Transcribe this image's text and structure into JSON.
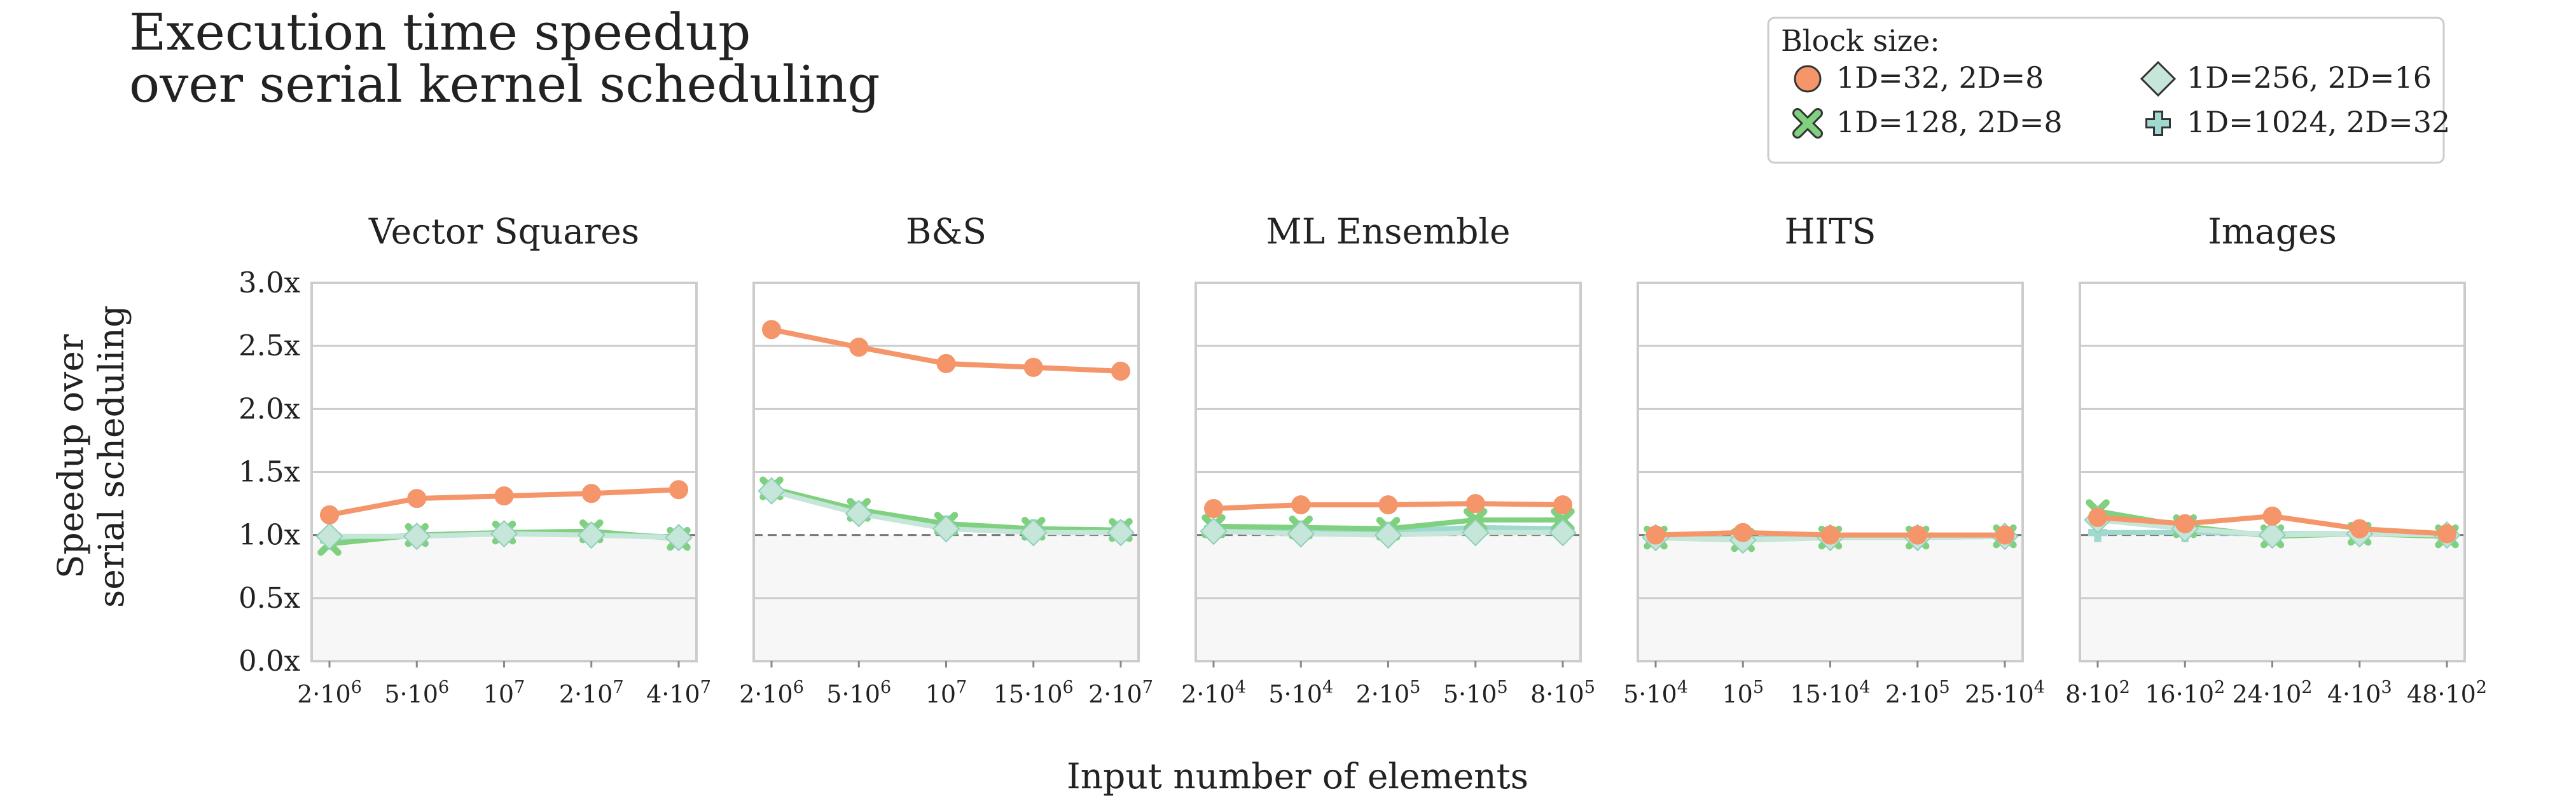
{
  "title_lines": [
    "Execution time speedup",
    "over serial kernel scheduling"
  ],
  "xlabel": "Input number of elements",
  "ylabel_lines": [
    "Speedup over",
    "serial scheduling"
  ],
  "y_ticks": [
    "0.0x",
    "0.5x",
    "1.0x",
    "1.5x",
    "2.0x",
    "2.5x",
    "3.0x"
  ],
  "legend": {
    "title": "Block size:",
    "entries": [
      "1D=32, 2D=8",
      "1D=256, 2D=16",
      "1D=128, 2D=8",
      "1D=1024, 2D=32"
    ]
  },
  "colors": {
    "s1": "#f4956a",
    "s2": "#c5e6d8",
    "s3": "#7fd07f",
    "s4": "#9fd9cf",
    "shade": "#f7f7f7",
    "grid": "#cccccc"
  },
  "chart_data": {
    "type": "line",
    "ylim": [
      0,
      3
    ],
    "reference_line": 1.0,
    "series_markers": [
      "circle",
      "diamond",
      "x",
      "plus"
    ],
    "panels": [
      {
        "title": "Vector Squares",
        "x_ticks": [
          [
            "2·10",
            "6"
          ],
          [
            "5·10",
            "6"
          ],
          [
            "10",
            "7"
          ],
          [
            "2·10",
            "7"
          ],
          [
            "4·10",
            "7"
          ]
        ],
        "series": [
          {
            "name": "1D=32, 2D=8",
            "values": [
              1.16,
              1.29,
              1.31,
              1.33,
              1.36
            ]
          },
          {
            "name": "1D=256, 2D=16",
            "values": [
              0.99,
              0.99,
              1.01,
              1.0,
              0.98
            ]
          },
          {
            "name": "1D=128, 2D=8",
            "values": [
              0.93,
              1.0,
              1.02,
              1.03,
              0.97
            ]
          },
          {
            "name": "1D=1024, 2D=32",
            "values": [
              0.96,
              1.0,
              1.02,
              1.02,
              0.98
            ]
          }
        ]
      },
      {
        "title": "B&S",
        "x_ticks": [
          [
            "2·10",
            "6"
          ],
          [
            "5·10",
            "6"
          ],
          [
            "10",
            "7"
          ],
          [
            "15·10",
            "6"
          ],
          [
            "2·10",
            "7"
          ]
        ],
        "series": [
          {
            "name": "1D=32, 2D=8",
            "values": [
              2.63,
              2.49,
              2.36,
              2.33,
              2.3
            ]
          },
          {
            "name": "1D=256, 2D=16",
            "values": [
              1.35,
              1.17,
              1.05,
              1.02,
              1.02
            ]
          },
          {
            "name": "1D=128, 2D=8",
            "values": [
              1.37,
              1.2,
              1.09,
              1.05,
              1.04
            ]
          },
          {
            "name": "1D=1024, 2D=32",
            "values": [
              1.36,
              1.19,
              1.08,
              1.05,
              1.04
            ]
          }
        ]
      },
      {
        "title": "ML Ensemble",
        "x_ticks": [
          [
            "2·10",
            "4"
          ],
          [
            "5·10",
            "4"
          ],
          [
            "2·10",
            "5"
          ],
          [
            "5·10",
            "5"
          ],
          [
            "8·10",
            "5"
          ]
        ],
        "series": [
          {
            "name": "1D=32, 2D=8",
            "values": [
              1.21,
              1.24,
              1.24,
              1.25,
              1.24
            ]
          },
          {
            "name": "1D=256, 2D=16",
            "values": [
              1.03,
              1.01,
              1.0,
              1.02,
              1.02
            ]
          },
          {
            "name": "1D=128, 2D=8",
            "values": [
              1.07,
              1.06,
              1.05,
              1.12,
              1.12
            ]
          },
          {
            "name": "1D=1024, 2D=32",
            "values": [
              1.05,
              1.04,
              1.03,
              1.06,
              1.05
            ]
          }
        ]
      },
      {
        "title": "HITS",
        "x_ticks": [
          [
            "5·10",
            "4"
          ],
          [
            "10",
            "5"
          ],
          [
            "15·10",
            "4"
          ],
          [
            "2·10",
            "5"
          ],
          [
            "25·10",
            "4"
          ]
        ],
        "series": [
          {
            "name": "1D=32, 2D=8",
            "values": [
              1.0,
              1.02,
              1.0,
              1.0,
              1.0
            ]
          },
          {
            "name": "1D=256, 2D=16",
            "values": [
              0.98,
              0.96,
              0.98,
              0.98,
              0.99
            ]
          },
          {
            "name": "1D=128, 2D=8",
            "values": [
              0.98,
              0.96,
              0.98,
              0.98,
              0.99
            ]
          },
          {
            "name": "1D=1024, 2D=32",
            "values": [
              0.98,
              0.97,
              0.99,
              0.99,
              0.99
            ]
          }
        ]
      },
      {
        "title": "Images",
        "x_ticks": [
          [
            "8·10",
            "2"
          ],
          [
            "16·10",
            "2"
          ],
          [
            "24·10",
            "2"
          ],
          [
            "4·10",
            "3"
          ],
          [
            "48·10",
            "2"
          ]
        ],
        "series": [
          {
            "name": "1D=32, 2D=8",
            "values": [
              1.14,
              1.09,
              1.15,
              1.05,
              1.01
            ]
          },
          {
            "name": "1D=256, 2D=16",
            "values": [
              1.12,
              1.05,
              1.0,
              1.01,
              1.0
            ]
          },
          {
            "name": "1D=128, 2D=8",
            "values": [
              1.19,
              1.07,
              0.99,
              1.01,
              0.99
            ]
          },
          {
            "name": "1D=1024, 2D=32",
            "values": [
              1.02,
              1.02,
              1.01,
              1.01,
              1.0
            ]
          }
        ]
      }
    ]
  }
}
